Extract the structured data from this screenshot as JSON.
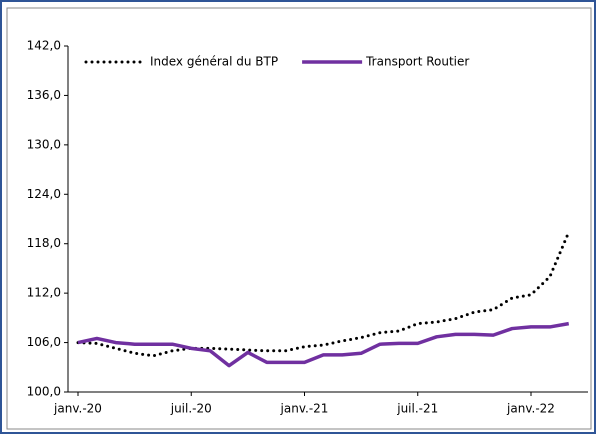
{
  "chart_data": {
    "type": "line",
    "categories": [
      "janv.-20",
      null,
      null,
      null,
      null,
      null,
      "juil.-20",
      null,
      null,
      null,
      null,
      null,
      "janv.-21",
      null,
      null,
      null,
      null,
      null,
      "juil.-21",
      null,
      null,
      null,
      null,
      null,
      "janv.-22",
      null,
      null
    ],
    "series": [
      {
        "name": "Index général du BTP",
        "color": "#000000",
        "style": "dotted",
        "values": [
          106.0,
          105.9,
          105.3,
          104.7,
          104.4,
          105.0,
          105.3,
          105.3,
          105.2,
          105.1,
          105.0,
          105.0,
          105.5,
          105.7,
          106.2,
          106.6,
          107.2,
          107.4,
          108.3,
          108.5,
          108.9,
          109.7,
          110.0,
          111.4,
          111.8,
          114.0,
          119.4
        ]
      },
      {
        "name": "Transport Routier",
        "color": "#7030a0",
        "style": "solid",
        "values": [
          106.0,
          106.5,
          106.0,
          105.8,
          105.8,
          105.8,
          105.3,
          105.0,
          103.2,
          104.8,
          103.6,
          103.6,
          103.6,
          104.5,
          104.5,
          104.7,
          105.8,
          105.9,
          105.9,
          106.7,
          107.0,
          107.0,
          106.9,
          107.7,
          107.9,
          107.9,
          108.3
        ]
      }
    ],
    "ylim": [
      100,
      142
    ],
    "yticks": [
      {
        "value": 100,
        "label": "100,0"
      },
      {
        "value": 106,
        "label": "106,0"
      },
      {
        "value": 112,
        "label": "112,0"
      },
      {
        "value": 118,
        "label": "118,0"
      },
      {
        "value": 124,
        "label": "124,0"
      },
      {
        "value": 130,
        "label": "130,0"
      },
      {
        "value": 136,
        "label": "136,0"
      },
      {
        "value": 142,
        "label": "142,0"
      }
    ],
    "legend": "top"
  }
}
